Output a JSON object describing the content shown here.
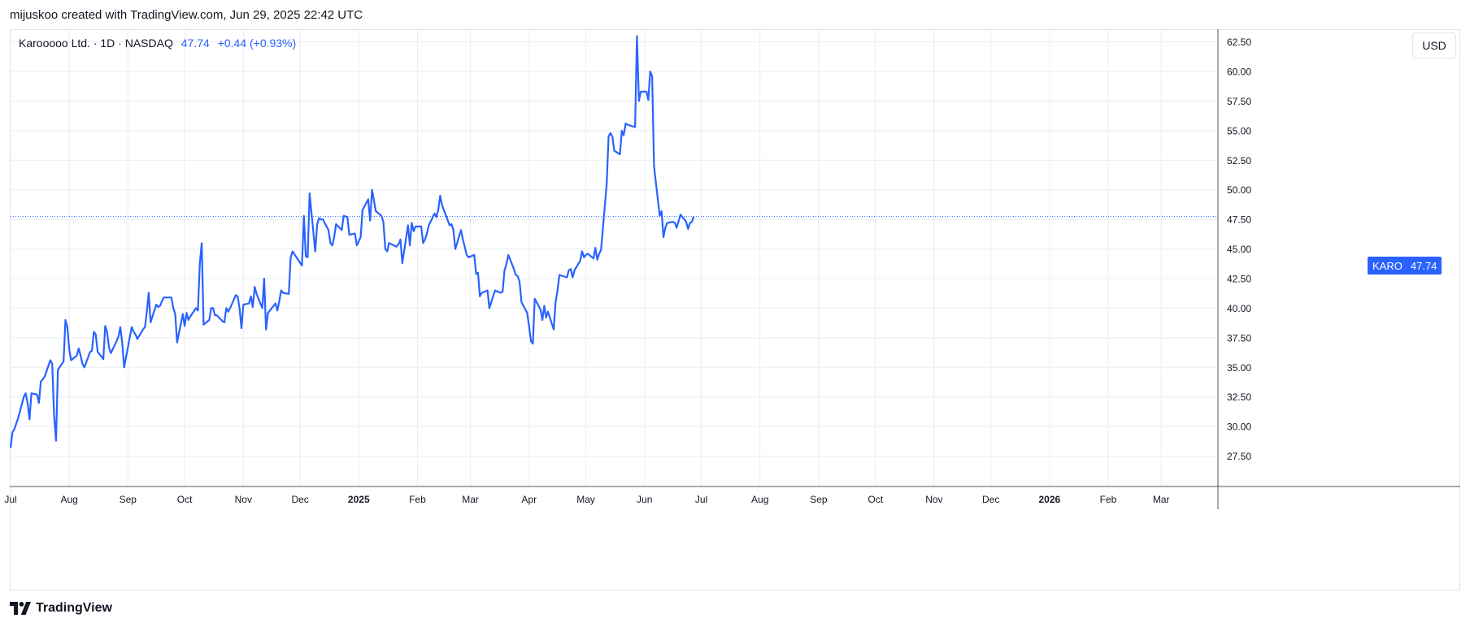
{
  "header": {
    "text": "mijuskoo created with TradingView.com, Jun 29, 2025 22:42 UTC"
  },
  "legend": {
    "symbol": "Karooooo Ltd. · 1D · NASDAQ",
    "last": "47.74",
    "change": "+0.44 (+0.93%)"
  },
  "currency_button": "USD",
  "price_tag": {
    "ticker": "KARO",
    "value": "47.74"
  },
  "footer": {
    "brand": "TradingView"
  },
  "colors": {
    "line": "#2962ff",
    "grid": "#e8edf3",
    "axis_text": "#131722"
  },
  "chart_data": {
    "type": "line",
    "title": "Karooooo Ltd. · 1D · NASDAQ",
    "xlabel": "",
    "ylabel": "",
    "ylim": [
      25.0,
      63.5
    ],
    "xlim": [
      "2024-07-01",
      "2026-03-31"
    ],
    "y_ticks": [
      "62.50",
      "60.00",
      "57.50",
      "55.00",
      "52.50",
      "50.00",
      "47.50",
      "45.00",
      "42.50",
      "40.00",
      "37.50",
      "35.00",
      "32.50",
      "30.00",
      "27.50"
    ],
    "x_ticks": [
      {
        "label": "Jul",
        "date": "2024-07-01",
        "bold": false
      },
      {
        "label": "Aug",
        "date": "2024-08-01",
        "bold": false
      },
      {
        "label": "Sep",
        "date": "2024-09-01",
        "bold": false
      },
      {
        "label": "Oct",
        "date": "2024-10-01",
        "bold": false
      },
      {
        "label": "Nov",
        "date": "2024-11-01",
        "bold": false
      },
      {
        "label": "Dec",
        "date": "2024-12-01",
        "bold": false
      },
      {
        "label": "2025",
        "date": "2025-01-01",
        "bold": true
      },
      {
        "label": "Feb",
        "date": "2025-02-01",
        "bold": false
      },
      {
        "label": "Mar",
        "date": "2025-03-01",
        "bold": false
      },
      {
        "label": "Apr",
        "date": "2025-04-01",
        "bold": false
      },
      {
        "label": "May",
        "date": "2025-05-01",
        "bold": false
      },
      {
        "label": "Jun",
        "date": "2025-06-01",
        "bold": false
      },
      {
        "label": "Jul",
        "date": "2025-07-01",
        "bold": false
      },
      {
        "label": "Aug",
        "date": "2025-08-01",
        "bold": false
      },
      {
        "label": "Sep",
        "date": "2025-09-01",
        "bold": false
      },
      {
        "label": "Oct",
        "date": "2025-10-01",
        "bold": false
      },
      {
        "label": "Nov",
        "date": "2025-11-01",
        "bold": false
      },
      {
        "label": "Dec",
        "date": "2025-12-01",
        "bold": false
      },
      {
        "label": "2026",
        "date": "2026-01-01",
        "bold": true
      },
      {
        "label": "Feb",
        "date": "2026-02-01",
        "bold": false
      },
      {
        "label": "Mar",
        "date": "2026-03-01",
        "bold": false
      }
    ],
    "last_price_line": 47.74,
    "grid": true,
    "series": [
      {
        "name": "KARO",
        "points": [
          [
            "2024-07-01",
            28.2
          ],
          [
            "2024-07-02",
            29.5
          ],
          [
            "2024-07-03",
            29.8
          ],
          [
            "2024-07-05",
            30.7
          ],
          [
            "2024-07-08",
            32.5
          ],
          [
            "2024-07-09",
            32.8
          ],
          [
            "2024-07-10",
            32.0
          ],
          [
            "2024-07-11",
            30.6
          ],
          [
            "2024-07-12",
            32.8
          ],
          [
            "2024-07-15",
            32.7
          ],
          [
            "2024-07-16",
            32.0
          ],
          [
            "2024-07-17",
            33.8
          ],
          [
            "2024-07-18",
            34.0
          ],
          [
            "2024-07-19",
            34.2
          ],
          [
            "2024-07-22",
            35.6
          ],
          [
            "2024-07-23",
            35.3
          ],
          [
            "2024-07-24",
            31.0
          ],
          [
            "2024-07-25",
            28.8
          ],
          [
            "2024-07-26",
            34.8
          ],
          [
            "2024-07-29",
            35.5
          ],
          [
            "2024-07-30",
            39.0
          ],
          [
            "2024-07-31",
            38.4
          ],
          [
            "2024-08-01",
            36.5
          ],
          [
            "2024-08-02",
            35.6
          ],
          [
            "2024-08-05",
            36.0
          ],
          [
            "2024-08-06",
            36.6
          ],
          [
            "2024-08-07",
            36.0
          ],
          [
            "2024-08-08",
            35.3
          ],
          [
            "2024-08-09",
            35.0
          ],
          [
            "2024-08-12",
            36.3
          ],
          [
            "2024-08-13",
            36.4
          ],
          [
            "2024-08-14",
            38.0
          ],
          [
            "2024-08-15",
            37.8
          ],
          [
            "2024-08-16",
            36.3
          ],
          [
            "2024-08-19",
            35.7
          ],
          [
            "2024-08-20",
            38.5
          ],
          [
            "2024-08-21",
            38.0
          ],
          [
            "2024-08-22",
            36.7
          ],
          [
            "2024-08-23",
            36.2
          ],
          [
            "2024-08-26",
            37.2
          ],
          [
            "2024-08-27",
            37.6
          ],
          [
            "2024-08-28",
            38.4
          ],
          [
            "2024-08-29",
            37.1
          ],
          [
            "2024-08-30",
            35.0
          ],
          [
            "2024-09-03",
            38.4
          ],
          [
            "2024-09-04",
            38.0
          ],
          [
            "2024-09-05",
            37.8
          ],
          [
            "2024-09-06",
            37.4
          ],
          [
            "2024-09-09",
            38.2
          ],
          [
            "2024-09-10",
            38.4
          ],
          [
            "2024-09-11",
            39.7
          ],
          [
            "2024-09-12",
            41.3
          ],
          [
            "2024-09-13",
            38.8
          ],
          [
            "2024-09-16",
            40.3
          ],
          [
            "2024-09-17",
            40.1
          ],
          [
            "2024-09-18",
            40.2
          ],
          [
            "2024-09-19",
            40.6
          ],
          [
            "2024-09-20",
            40.9
          ],
          [
            "2024-09-23",
            40.9
          ],
          [
            "2024-09-24",
            40.9
          ],
          [
            "2024-09-25",
            40.0
          ],
          [
            "2024-09-26",
            39.5
          ],
          [
            "2024-09-27",
            37.1
          ],
          [
            "2024-09-30",
            39.5
          ],
          [
            "2024-10-01",
            38.5
          ],
          [
            "2024-10-02",
            39.6
          ],
          [
            "2024-10-03",
            39.0
          ],
          [
            "2024-10-04",
            39.3
          ],
          [
            "2024-10-07",
            40.0
          ],
          [
            "2024-10-08",
            39.8
          ],
          [
            "2024-10-09",
            43.8
          ],
          [
            "2024-10-10",
            45.5
          ],
          [
            "2024-10-11",
            38.6
          ],
          [
            "2024-10-14",
            39.0
          ],
          [
            "2024-10-15",
            40.0
          ],
          [
            "2024-10-16",
            40.0
          ],
          [
            "2024-10-17",
            39.4
          ],
          [
            "2024-10-18",
            39.4
          ],
          [
            "2024-10-21",
            38.9
          ],
          [
            "2024-10-22",
            38.8
          ],
          [
            "2024-10-23",
            40.0
          ],
          [
            "2024-10-24",
            39.7
          ],
          [
            "2024-10-25",
            40.0
          ],
          [
            "2024-10-28",
            41.1
          ],
          [
            "2024-10-29",
            41.0
          ],
          [
            "2024-10-30",
            40.0
          ],
          [
            "2024-10-31",
            38.3
          ],
          [
            "2024-11-01",
            40.3
          ],
          [
            "2024-11-04",
            40.4
          ],
          [
            "2024-11-05",
            41.0
          ],
          [
            "2024-11-06",
            40.1
          ],
          [
            "2024-11-07",
            41.8
          ],
          [
            "2024-11-08",
            41.2
          ],
          [
            "2024-11-11",
            40.0
          ],
          [
            "2024-11-12",
            42.5
          ],
          [
            "2024-11-13",
            38.2
          ],
          [
            "2024-11-14",
            39.6
          ],
          [
            "2024-11-15",
            39.8
          ],
          [
            "2024-11-18",
            40.4
          ],
          [
            "2024-11-19",
            39.8
          ],
          [
            "2024-11-20",
            40.6
          ],
          [
            "2024-11-21",
            41.5
          ],
          [
            "2024-11-22",
            41.3
          ],
          [
            "2024-11-25",
            41.2
          ],
          [
            "2024-11-26",
            44.3
          ],
          [
            "2024-11-27",
            44.8
          ],
          [
            "2024-12-02",
            43.6
          ],
          [
            "2024-12-03",
            47.8
          ],
          [
            "2024-12-04",
            44.4
          ],
          [
            "2024-12-05",
            44.3
          ],
          [
            "2024-12-06",
            49.7
          ],
          [
            "2024-12-09",
            44.8
          ],
          [
            "2024-12-10",
            47.1
          ],
          [
            "2024-12-11",
            47.6
          ],
          [
            "2024-12-12",
            47.5
          ],
          [
            "2024-12-13",
            47.5
          ],
          [
            "2024-12-16",
            46.6
          ],
          [
            "2024-12-17",
            45.5
          ],
          [
            "2024-12-18",
            45.3
          ],
          [
            "2024-12-19",
            46.0
          ],
          [
            "2024-12-20",
            47.1
          ],
          [
            "2024-12-23",
            46.6
          ],
          [
            "2024-12-24",
            47.8
          ],
          [
            "2024-12-26",
            47.7
          ],
          [
            "2024-12-27",
            46.2
          ],
          [
            "2024-12-30",
            46.3
          ],
          [
            "2024-12-31",
            45.3
          ],
          [
            "2025-01-02",
            46.0
          ],
          [
            "2025-01-03",
            48.3
          ],
          [
            "2025-01-06",
            49.2
          ],
          [
            "2025-01-07",
            47.4
          ],
          [
            "2025-01-08",
            50.0
          ],
          [
            "2025-01-10",
            48.2
          ],
          [
            "2025-01-13",
            47.8
          ],
          [
            "2025-01-14",
            47.3
          ],
          [
            "2025-01-15",
            45.0
          ],
          [
            "2025-01-16",
            44.8
          ],
          [
            "2025-01-17",
            45.5
          ],
          [
            "2025-01-21",
            45.2
          ],
          [
            "2025-01-22",
            45.4
          ],
          [
            "2025-01-23",
            45.8
          ],
          [
            "2025-01-24",
            43.8
          ],
          [
            "2025-01-27",
            47.0
          ],
          [
            "2025-01-28",
            45.3
          ],
          [
            "2025-01-29",
            47.2
          ],
          [
            "2025-01-30",
            46.5
          ],
          [
            "2025-01-31",
            46.9
          ],
          [
            "2025-02-03",
            46.9
          ],
          [
            "2025-02-04",
            45.5
          ],
          [
            "2025-02-05",
            45.8
          ],
          [
            "2025-02-06",
            46.3
          ],
          [
            "2025-02-07",
            47.0
          ],
          [
            "2025-02-10",
            48.0
          ],
          [
            "2025-02-11",
            47.7
          ],
          [
            "2025-02-12",
            48.3
          ],
          [
            "2025-02-13",
            49.5
          ],
          [
            "2025-02-14",
            48.7
          ],
          [
            "2025-02-18",
            47.0
          ],
          [
            "2025-02-19",
            47.1
          ],
          [
            "2025-02-20",
            46.6
          ],
          [
            "2025-02-21",
            45.0
          ],
          [
            "2025-02-24",
            46.6
          ],
          [
            "2025-02-25",
            45.8
          ],
          [
            "2025-02-26",
            45.2
          ],
          [
            "2025-02-27",
            44.5
          ],
          [
            "2025-02-28",
            44.3
          ],
          [
            "2025-03-03",
            44.5
          ],
          [
            "2025-03-04",
            42.9
          ],
          [
            "2025-03-05",
            43.0
          ],
          [
            "2025-03-06",
            41.0
          ],
          [
            "2025-03-07",
            41.3
          ],
          [
            "2025-03-10",
            41.5
          ],
          [
            "2025-03-11",
            40.0
          ],
          [
            "2025-03-12",
            40.5
          ],
          [
            "2025-03-13",
            41.0
          ],
          [
            "2025-03-14",
            41.5
          ],
          [
            "2025-03-17",
            41.3
          ],
          [
            "2025-03-18",
            41.4
          ],
          [
            "2025-03-19",
            43.2
          ],
          [
            "2025-03-20",
            43.7
          ],
          [
            "2025-03-21",
            44.5
          ],
          [
            "2025-03-24",
            43.3
          ],
          [
            "2025-03-25",
            42.8
          ],
          [
            "2025-03-26",
            42.7
          ],
          [
            "2025-03-27",
            42.2
          ],
          [
            "2025-03-28",
            40.5
          ],
          [
            "2025-03-31",
            39.6
          ],
          [
            "2025-04-01",
            38.4
          ],
          [
            "2025-04-02",
            37.2
          ],
          [
            "2025-04-03",
            37.0
          ],
          [
            "2025-04-04",
            40.8
          ],
          [
            "2025-04-07",
            39.9
          ],
          [
            "2025-04-08",
            39.0
          ],
          [
            "2025-04-09",
            40.2
          ],
          [
            "2025-04-10",
            39.2
          ],
          [
            "2025-04-11",
            39.7
          ],
          [
            "2025-04-14",
            38.2
          ],
          [
            "2025-04-15",
            40.5
          ],
          [
            "2025-04-16",
            41.5
          ],
          [
            "2025-04-17",
            42.8
          ],
          [
            "2025-04-21",
            42.6
          ],
          [
            "2025-04-22",
            43.2
          ],
          [
            "2025-04-23",
            43.3
          ],
          [
            "2025-04-24",
            42.6
          ],
          [
            "2025-04-25",
            43.2
          ],
          [
            "2025-04-28",
            44.0
          ],
          [
            "2025-04-29",
            44.8
          ],
          [
            "2025-04-30",
            44.3
          ],
          [
            "2025-05-01",
            44.5
          ],
          [
            "2025-05-02",
            44.6
          ],
          [
            "2025-05-05",
            44.2
          ],
          [
            "2025-05-06",
            45.1
          ],
          [
            "2025-05-07",
            44.1
          ],
          [
            "2025-05-08",
            44.6
          ],
          [
            "2025-05-09",
            44.9
          ],
          [
            "2025-05-12",
            50.5
          ],
          [
            "2025-05-13",
            54.5
          ],
          [
            "2025-05-14",
            54.8
          ],
          [
            "2025-05-15",
            54.5
          ],
          [
            "2025-05-16",
            53.3
          ],
          [
            "2025-05-19",
            53.0
          ],
          [
            "2025-05-20",
            55.0
          ],
          [
            "2025-05-21",
            54.6
          ],
          [
            "2025-05-22",
            55.6
          ],
          [
            "2025-05-23",
            55.5
          ],
          [
            "2025-05-27",
            55.3
          ],
          [
            "2025-05-28",
            63.0
          ],
          [
            "2025-05-29",
            57.5
          ],
          [
            "2025-05-30",
            58.3
          ],
          [
            "2025-06-02",
            58.3
          ],
          [
            "2025-06-03",
            57.6
          ],
          [
            "2025-06-04",
            60.0
          ],
          [
            "2025-06-05",
            59.6
          ],
          [
            "2025-06-06",
            52.0
          ],
          [
            "2025-06-09",
            47.8
          ],
          [
            "2025-06-10",
            48.2
          ],
          [
            "2025-06-11",
            46.0
          ],
          [
            "2025-06-12",
            46.8
          ],
          [
            "2025-06-13",
            47.2
          ],
          [
            "2025-06-16",
            47.3
          ],
          [
            "2025-06-17",
            47.2
          ],
          [
            "2025-06-18",
            46.8
          ],
          [
            "2025-06-20",
            47.9
          ],
          [
            "2025-06-23",
            47.3
          ],
          [
            "2025-06-24",
            46.7
          ],
          [
            "2025-06-25",
            47.2
          ],
          [
            "2025-06-26",
            47.3
          ],
          [
            "2025-06-27",
            47.74
          ]
        ]
      }
    ]
  }
}
